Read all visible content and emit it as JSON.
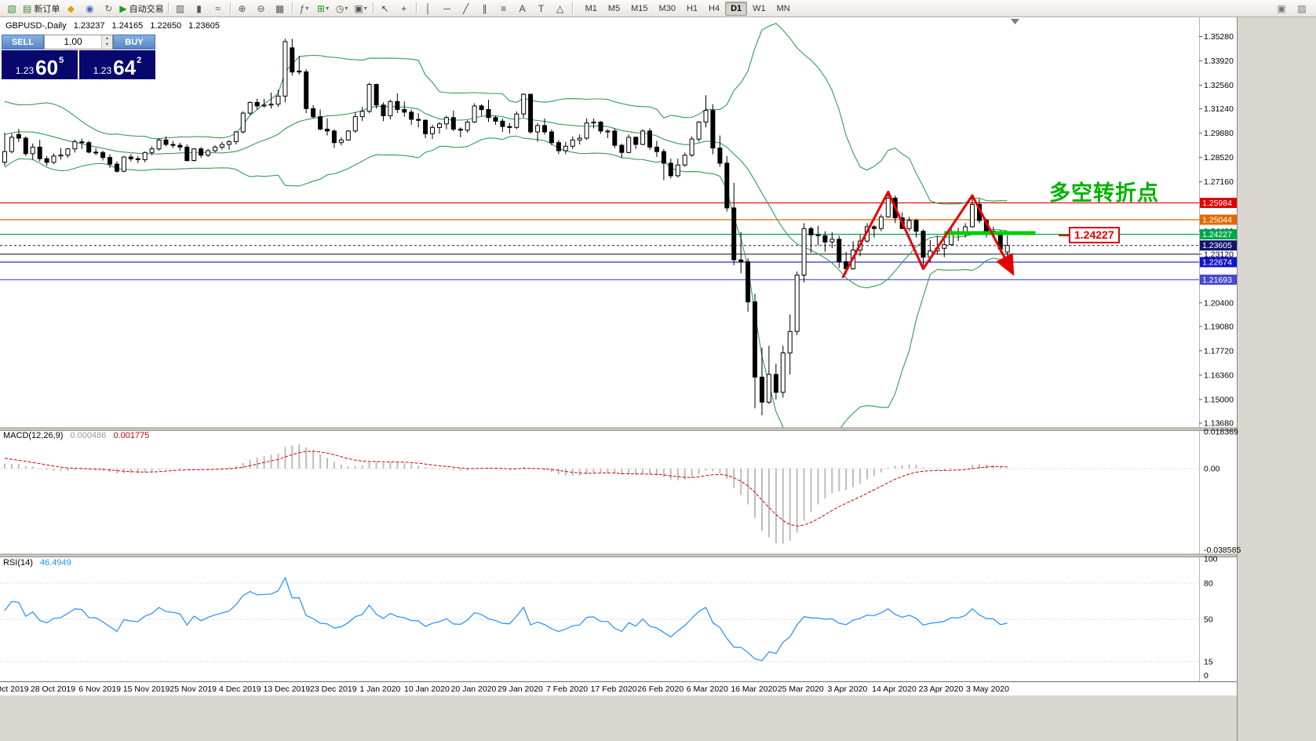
{
  "window": {
    "right_panel_bg": "#d9d6d0"
  },
  "toolbar": {
    "left": [
      {
        "name": "new-chart-button",
        "glyph": "▧",
        "color": "#3d8f44"
      },
      {
        "name": "new-order-button",
        "glyph": "▤",
        "color": "#3d7f3d",
        "label": "新订单"
      },
      {
        "name": "mql5-icon",
        "glyph": "◆",
        "color": "#dfa01a"
      },
      {
        "name": "market-watch-icon",
        "glyph": "◉",
        "color": "#3a6fc4"
      },
      {
        "name": "refresh-icon",
        "glyph": "↻",
        "color": "#666666"
      },
      {
        "name": "autotrading-button",
        "glyph": "▶",
        "color": "#16a016",
        "label": "自动交易"
      },
      {
        "sep": true
      },
      {
        "name": "bar-chart-button",
        "glyph": "▥",
        "color": "#555555"
      },
      {
        "name": "candlestick-button",
        "glyph": "▮",
        "color": "#555555"
      },
      {
        "name": "line-chart-button",
        "glyph": "≈",
        "color": "#555555"
      },
      {
        "sep": true
      },
      {
        "name": "zoom-in-button",
        "glyph": "⊕",
        "color": "#555555"
      },
      {
        "name": "zoom-out-button",
        "glyph": "⊖",
        "color": "#555555"
      },
      {
        "name": "grid-button",
        "glyph": "▦",
        "color": "#555555"
      },
      {
        "sep": true
      },
      {
        "name": "indicators-button",
        "glyph": "ƒ",
        "color": "#2f6f2f",
        "caret": true
      },
      {
        "name": "add-indicator-button",
        "glyph": "⊞",
        "color": "#16a016",
        "caret": true
      },
      {
        "name": "periods-button",
        "glyph": "◷",
        "color": "#555555",
        "caret": true
      },
      {
        "name": "templates-button",
        "glyph": "▣",
        "color": "#555555",
        "caret": true
      },
      {
        "sep": true
      },
      {
        "name": "cursor-button",
        "glyph": "↖",
        "color": "#444444"
      },
      {
        "name": "crosshair-button",
        "glyph": "+",
        "color": "#444444"
      },
      {
        "sep": true
      },
      {
        "name": "vertical-line-button",
        "glyph": "│",
        "color": "#444444"
      },
      {
        "name": "horizontal-line-button",
        "glyph": "─",
        "color": "#444444"
      },
      {
        "name": "trendline-button",
        "glyph": "╱",
        "color": "#444444"
      },
      {
        "name": "channel-button",
        "glyph": "∥",
        "color": "#444444"
      },
      {
        "name": "fibonacci-button",
        "glyph": "≡",
        "color": "#444444"
      },
      {
        "name": "text-button",
        "glyph": "A",
        "color": "#444444"
      },
      {
        "name": "label-button",
        "glyph": "T",
        "color": "#444444"
      },
      {
        "name": "shapes-button",
        "glyph": "△",
        "color": "#444444"
      },
      {
        "sep": true
      }
    ],
    "timeframes": [
      {
        "label": "M1"
      },
      {
        "label": "M5"
      },
      {
        "label": "M15"
      },
      {
        "label": "M30"
      },
      {
        "label": "H1"
      },
      {
        "label": "H4"
      },
      {
        "label": "D1",
        "active": true
      },
      {
        "label": "W1"
      },
      {
        "label": "MN"
      }
    ],
    "right": [
      {
        "name": "arrange-windows-icon",
        "glyph": "▣",
        "color": "#777777"
      },
      {
        "name": "help-icon",
        "glyph": "▨",
        "color": "#777777"
      }
    ]
  },
  "order_panel": {
    "sell_label": "SELL",
    "buy_label": "BUY",
    "volume": "1.00",
    "sell_price": {
      "prefix": "1.23",
      "big": "60",
      "sup": "5"
    },
    "buy_price": {
      "prefix": "1.23",
      "big": "64",
      "sup": "2"
    }
  },
  "chart_header": {
    "symbol_period": "GBPUSD-,Daily",
    "open": "1.23237",
    "high": "1.24165",
    "low": "1.22650",
    "close": "1.23605"
  },
  "annotations": {
    "turning_point_text": "多空转折点",
    "turning_point_color": "#00b300",
    "price_tag": "1.24227",
    "price_tag_color": "#e00000"
  },
  "indicators": {
    "macd": {
      "label": "MACD(12,26,9)",
      "value_main": "0.000486",
      "value_signal": "0.001775",
      "axis_labels": [
        "0.018369",
        "0.00",
        "-0.038585"
      ]
    },
    "rsi": {
      "label": "RSI(14)",
      "value": "46.4949",
      "axis_labels": [
        "100",
        "80",
        "50",
        "15",
        "0"
      ]
    }
  },
  "price_axis": {
    "ticks": [
      "1.35280",
      "1.33920",
      "1.32560",
      "1.31240",
      "1.29880",
      "1.28520",
      "1.27160",
      "1.24400",
      "1.23120",
      "1.20400",
      "1.19080",
      "1.17720",
      "1.16360",
      "1.15000",
      "1.13680"
    ],
    "badges": [
      {
        "label": "1.25984",
        "color": "#e00000"
      },
      {
        "label": "1.25044",
        "color": "#e06a00"
      },
      {
        "label": "1.24227",
        "color": "#00a650"
      },
      {
        "label": "1.23605",
        "color": "#14146e"
      },
      {
        "label": "1.22674",
        "color": "#1414c8"
      },
      {
        "label": "1.21693",
        "color": "#4848c8"
      }
    ]
  },
  "chart_data": {
    "type": "candlestick",
    "symbol": "GBPUSD-",
    "timeframe": "Daily",
    "current_bar": {
      "open": 1.23237,
      "high": 1.24165,
      "low": 1.2265,
      "close": 1.23605
    },
    "quote": {
      "bid": "1.23605",
      "ask": "1.23642"
    },
    "x_labels": [
      "17 Oct 2019",
      "28 Oct 2019",
      "6 Nov 2019",
      "15 Nov 2019",
      "25 Nov 2019",
      "4 Dec 2019",
      "13 Dec 2019",
      "23 Dec 2019",
      "1 Jan 2020",
      "10 Jan 2020",
      "20 Jan 2020",
      "29 Jan 2020",
      "7 Feb 2020",
      "17 Feb 2020",
      "26 Feb 2020",
      "6 Mar 2020",
      "16 Mar 2020",
      "25 Mar 2020",
      "3 Apr 2020",
      "14 Apr 2020",
      "23 Apr 2020",
      "3 May 2020"
    ],
    "y_axis_range": {
      "top": 1.3634,
      "bottom": 1.134
    },
    "bollinger": {
      "period": 20,
      "deviation": 2,
      "color": "#2f9e54"
    },
    "warmup_closes": [
      1.276,
      1.28,
      1.284,
      1.288,
      1.293,
      1.298,
      1.302,
      1.306,
      1.309,
      1.311,
      1.312,
      1.31,
      1.307,
      1.304,
      1.301,
      1.298,
      1.295,
      1.2935,
      1.292,
      1.2905
    ],
    "candles": [
      [
        1.2825,
        1.299,
        1.2805,
        1.2885
      ],
      [
        1.2885,
        1.2985,
        1.2875,
        1.2965
      ],
      [
        1.298,
        1.3012,
        1.2938,
        1.296
      ],
      [
        1.296,
        1.297,
        1.286,
        1.2873
      ],
      [
        1.2873,
        1.293,
        1.284,
        1.291
      ],
      [
        1.291,
        1.295,
        1.283,
        1.2845
      ],
      [
        1.2845,
        1.286,
        1.2805,
        1.2825
      ],
      [
        1.2825,
        1.2875,
        1.2815,
        1.286
      ],
      [
        1.286,
        1.2905,
        1.284,
        1.2866
      ],
      [
        1.2866,
        1.2905,
        1.285,
        1.29
      ],
      [
        1.29,
        1.2952,
        1.288,
        1.294
      ],
      [
        1.294,
        1.2958,
        1.29,
        1.2935
      ],
      [
        1.2935,
        1.2945,
        1.2875,
        1.2882
      ],
      [
        1.2882,
        1.2905,
        1.2865,
        1.288
      ],
      [
        1.288,
        1.289,
        1.2835,
        1.2852
      ],
      [
        1.2852,
        1.287,
        1.2794,
        1.2815
      ],
      [
        1.2815,
        1.283,
        1.2768,
        1.2775
      ],
      [
        1.2775,
        1.286,
        1.277,
        1.2855
      ],
      [
        1.2855,
        1.287,
        1.283,
        1.2845
      ],
      [
        1.2845,
        1.286,
        1.282,
        1.284
      ],
      [
        1.284,
        1.2885,
        1.2825,
        1.288
      ],
      [
        1.288,
        1.2915,
        1.2865,
        1.29
      ],
      [
        1.29,
        1.296,
        1.289,
        1.295
      ],
      [
        1.295,
        1.297,
        1.2915,
        1.2925
      ],
      [
        1.2925,
        1.2945,
        1.2905,
        1.292
      ],
      [
        1.292,
        1.2935,
        1.289,
        1.291
      ],
      [
        1.291,
        1.2925,
        1.283,
        1.2835
      ],
      [
        1.2835,
        1.2905,
        1.283,
        1.29
      ],
      [
        1.29,
        1.291,
        1.285,
        1.2865
      ],
      [
        1.2865,
        1.29,
        1.2855,
        1.289
      ],
      [
        1.289,
        1.292,
        1.288,
        1.291
      ],
      [
        1.291,
        1.294,
        1.2895,
        1.2925
      ],
      [
        1.2925,
        1.295,
        1.2895,
        1.294
      ],
      [
        1.294,
        1.3,
        1.2925,
        1.2995
      ],
      [
        1.2995,
        1.311,
        1.2985,
        1.31
      ],
      [
        1.31,
        1.3165,
        1.309,
        1.316
      ],
      [
        1.316,
        1.318,
        1.312,
        1.314
      ],
      [
        1.314,
        1.318,
        1.313,
        1.3145
      ],
      [
        1.3145,
        1.3215,
        1.3125,
        1.315
      ],
      [
        1.315,
        1.323,
        1.3135,
        1.3195
      ],
      [
        1.3195,
        1.3515,
        1.316,
        1.35
      ],
      [
        1.3465,
        1.3515,
        1.331,
        1.333
      ],
      [
        1.3335,
        1.342,
        1.3315,
        1.333
      ],
      [
        1.333,
        1.3345,
        1.31,
        1.3125
      ],
      [
        1.3125,
        1.3145,
        1.307,
        1.308
      ],
      [
        1.308,
        1.312,
        1.3005,
        1.301
      ],
      [
        1.301,
        1.307,
        1.2975,
        1.3
      ],
      [
        1.3,
        1.301,
        1.2905,
        1.2935
      ],
      [
        1.2935,
        1.2965,
        1.292,
        1.295
      ],
      [
        1.295,
        1.3005,
        1.2945,
        1.3
      ],
      [
        1.3,
        1.3105,
        1.299,
        1.308
      ],
      [
        1.308,
        1.3135,
        1.3055,
        1.311
      ],
      [
        1.311,
        1.327,
        1.31,
        1.326
      ],
      [
        1.326,
        1.3265,
        1.3125,
        1.3145
      ],
      [
        1.3145,
        1.316,
        1.3055,
        1.3085
      ],
      [
        1.3085,
        1.3175,
        1.3065,
        1.3165
      ],
      [
        1.3165,
        1.321,
        1.31,
        1.312
      ],
      [
        1.312,
        1.3165,
        1.308,
        1.3105
      ],
      [
        1.3105,
        1.312,
        1.3035,
        1.3065
      ],
      [
        1.3065,
        1.31,
        1.302,
        1.306
      ],
      [
        1.306,
        1.3065,
        1.296,
        1.2985
      ],
      [
        1.2985,
        1.3035,
        1.2955,
        1.302
      ],
      [
        1.302,
        1.305,
        1.2985,
        1.304
      ],
      [
        1.304,
        1.3085,
        1.301,
        1.3075
      ],
      [
        1.3075,
        1.3115,
        1.3,
        1.301
      ],
      [
        1.301,
        1.302,
        1.2965,
        1.3005
      ],
      [
        1.3005,
        1.306,
        1.299,
        1.305
      ],
      [
        1.305,
        1.3155,
        1.3045,
        1.314
      ],
      [
        1.314,
        1.315,
        1.3085,
        1.312
      ],
      [
        1.312,
        1.3175,
        1.305,
        1.3075
      ],
      [
        1.3075,
        1.3085,
        1.3035,
        1.3055
      ],
      [
        1.3055,
        1.307,
        1.2995,
        1.3025
      ],
      [
        1.3025,
        1.3045,
        1.2985,
        1.302
      ],
      [
        1.302,
        1.311,
        1.301,
        1.3095
      ],
      [
        1.3095,
        1.321,
        1.3075,
        1.3205
      ],
      [
        1.3205,
        1.3205,
        1.2985,
        1.2995
      ],
      [
        1.2995,
        1.3045,
        1.294,
        1.303
      ],
      [
        1.303,
        1.307,
        1.298,
        1.2995
      ],
      [
        1.2995,
        1.301,
        1.292,
        1.2935
      ],
      [
        1.2935,
        1.295,
        1.287,
        1.289
      ],
      [
        1.289,
        1.294,
        1.287,
        1.2915
      ],
      [
        1.2915,
        1.297,
        1.29,
        1.295
      ],
      [
        1.295,
        1.298,
        1.2925,
        1.296
      ],
      [
        1.296,
        1.307,
        1.295,
        1.3045
      ],
      [
        1.3045,
        1.307,
        1.3015,
        1.305
      ],
      [
        1.305,
        1.3055,
        1.2985,
        1.3
      ],
      [
        1.3,
        1.301,
        1.296,
        1.3
      ],
      [
        1.3,
        1.3015,
        1.2905,
        1.292
      ],
      [
        1.292,
        1.293,
        1.285,
        1.288
      ],
      [
        1.288,
        1.298,
        1.2875,
        1.2965
      ],
      [
        1.2965,
        1.297,
        1.29,
        1.2925
      ],
      [
        1.2925,
        1.301,
        1.292,
        1.3
      ],
      [
        1.3,
        1.3015,
        1.2895,
        1.291
      ],
      [
        1.291,
        1.2945,
        1.2855,
        1.2885
      ],
      [
        1.2885,
        1.29,
        1.2725,
        1.282
      ],
      [
        1.282,
        1.2845,
        1.2735,
        1.275
      ],
      [
        1.275,
        1.2845,
        1.274,
        1.281
      ],
      [
        1.281,
        1.288,
        1.28,
        1.2865
      ],
      [
        1.2865,
        1.297,
        1.2855,
        1.2955
      ],
      [
        1.2955,
        1.3055,
        1.294,
        1.305
      ],
      [
        1.305,
        1.32,
        1.302,
        1.3115
      ],
      [
        1.3115,
        1.315,
        1.287,
        1.2905
      ],
      [
        1.2905,
        1.2975,
        1.28,
        1.282
      ],
      [
        1.282,
        1.286,
        1.255,
        1.257
      ],
      [
        1.257,
        1.271,
        1.225,
        1.228
      ],
      [
        1.228,
        1.2435,
        1.2205,
        1.227
      ],
      [
        1.227,
        1.229,
        1.199,
        1.2045
      ],
      [
        1.2045,
        1.209,
        1.145,
        1.1625
      ],
      [
        1.1625,
        1.179,
        1.1412,
        1.1485
      ],
      [
        1.1485,
        1.18,
        1.1475,
        1.164
      ],
      [
        1.164,
        1.17,
        1.15,
        1.154
      ],
      [
        1.154,
        1.18,
        1.151,
        1.176
      ],
      [
        1.176,
        1.1975,
        1.164,
        1.188
      ],
      [
        1.188,
        1.2215,
        1.186,
        1.2195
      ],
      [
        1.2195,
        1.2485,
        1.2155,
        1.2455
      ],
      [
        1.2455,
        1.2465,
        1.232,
        1.242
      ],
      [
        1.242,
        1.247,
        1.236,
        1.2415
      ],
      [
        1.2415,
        1.244,
        1.2325,
        1.238
      ],
      [
        1.238,
        1.2435,
        1.2345,
        1.2395
      ],
      [
        1.2395,
        1.2415,
        1.2235,
        1.227
      ],
      [
        1.227,
        1.2325,
        1.22,
        1.223
      ],
      [
        1.223,
        1.2385,
        1.2225,
        1.2335
      ],
      [
        1.2335,
        1.242,
        1.23,
        1.2385
      ],
      [
        1.2385,
        1.2485,
        1.2375,
        1.2465
      ],
      [
        1.2465,
        1.2475,
        1.2405,
        1.2455
      ],
      [
        1.2455,
        1.2535,
        1.244,
        1.252
      ],
      [
        1.252,
        1.2648,
        1.2515,
        1.2625
      ],
      [
        1.2625,
        1.264,
        1.2485,
        1.2515
      ],
      [
        1.2515,
        1.2545,
        1.2455,
        1.2455
      ],
      [
        1.2455,
        1.252,
        1.244,
        1.25
      ],
      [
        1.25,
        1.251,
        1.2405,
        1.244
      ],
      [
        1.244,
        1.245,
        1.2247,
        1.2295
      ],
      [
        1.2295,
        1.239,
        1.2265,
        1.233
      ],
      [
        1.233,
        1.2415,
        1.231,
        1.2345
      ],
      [
        1.2345,
        1.2395,
        1.2295,
        1.2365
      ],
      [
        1.2365,
        1.2455,
        1.236,
        1.243
      ],
      [
        1.243,
        1.246,
        1.2385,
        1.2425
      ],
      [
        1.2425,
        1.2485,
        1.2405,
        1.2465
      ],
      [
        1.2465,
        1.2644,
        1.246,
        1.259
      ],
      [
        1.259,
        1.262,
        1.2485,
        1.25
      ],
      [
        1.25,
        1.251,
        1.2405,
        1.244
      ],
      [
        1.244,
        1.2465,
        1.241,
        1.2435
      ],
      [
        1.2435,
        1.2445,
        1.232,
        1.234
      ],
      [
        1.23237,
        1.24165,
        1.2265,
        1.23605
      ]
    ],
    "horizontal_lines": [
      {
        "price": 1.25984,
        "color": "#e00000"
      },
      {
        "price": 1.25044,
        "color": "#e06a00"
      },
      {
        "price": 1.24227,
        "color": "#00a650"
      },
      {
        "price": 1.2312,
        "color": "#3c3c3c"
      },
      {
        "price": 1.22674,
        "color": "#1414c8"
      },
      {
        "price": 1.21693,
        "color": "#4848c8"
      }
    ],
    "bid_line": {
      "price": 1.23605,
      "color": "#14146e"
    },
    "zigzag": {
      "color": "#e80000",
      "points": [
        [
          119.5,
          1.218
        ],
        [
          126,
          1.266
        ],
        [
          131,
          1.223
        ],
        [
          138,
          1.264
        ],
        [
          143.5,
          1.2225
        ]
      ]
    },
    "support_bar": {
      "price": 1.2423,
      "bar_start": 134,
      "bar_end": 147,
      "color": "#00ce00"
    },
    "rsi_levels": [
      80,
      50,
      15
    ]
  }
}
